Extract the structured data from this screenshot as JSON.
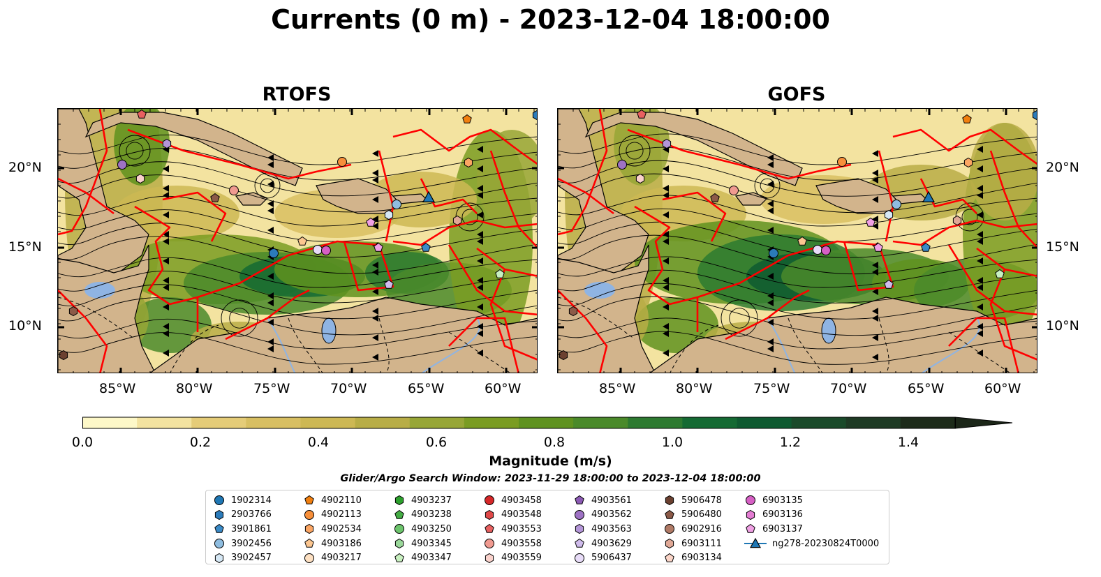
{
  "title": "Currents (0 m) - 2023-12-04 18:00:00",
  "panels": [
    {
      "title": "RTOFS"
    },
    {
      "title": "GOFS"
    }
  ],
  "axes": {
    "lon_ticks": [
      "85°W",
      "80°W",
      "75°W",
      "70°W",
      "65°W",
      "60°W"
    ],
    "lat_ticks": [
      "20°N",
      "15°N",
      "10°N"
    ]
  },
  "colorbar": {
    "ticks": [
      "0.0",
      "0.2",
      "0.4",
      "0.6",
      "0.8",
      "1.0",
      "1.2",
      "1.4"
    ],
    "label": "Magnitude (m/s)",
    "colors": [
      "#fdf8c8",
      "#f3e3a0",
      "#e5cc78",
      "#d8bf62",
      "#cdb854",
      "#b8ad46",
      "#97a636",
      "#7a9c22",
      "#5f921f",
      "#4a8a2a",
      "#2d7a30",
      "#146a33",
      "#0e5a30",
      "#1a4a2a",
      "#1e3a24",
      "#1d2b1a"
    ],
    "extend_color": "#1b2618"
  },
  "search_window": "Glider/Argo Search Window: 2023-11-29 18:00:00 to 2023-12-04 18:00:00",
  "legend": {
    "columns": [
      [
        {
          "label": "1902314",
          "color": "#1f77b4",
          "marker": "circle"
        },
        {
          "label": "2903766",
          "color": "#2b7bba",
          "marker": "hexagon"
        },
        {
          "label": "3901861",
          "color": "#3a8ac7",
          "marker": "pentagon"
        },
        {
          "label": "3902456",
          "color": "#8fbde0",
          "marker": "circle"
        },
        {
          "label": "3902457",
          "color": "#d6e8f5",
          "marker": "hexagon"
        }
      ],
      [
        {
          "label": "4902110",
          "color": "#f17f0f",
          "marker": "pentagon"
        },
        {
          "label": "4902113",
          "color": "#f78f3a",
          "marker": "circle"
        },
        {
          "label": "4902534",
          "color": "#fba563",
          "marker": "hexagon"
        },
        {
          "label": "4903186",
          "color": "#fcc690",
          "marker": "pentagon"
        },
        {
          "label": "4903217",
          "color": "#fde0c2",
          "marker": "circle"
        }
      ],
      [
        {
          "label": "4903237",
          "color": "#2ca02c",
          "marker": "hexagon"
        },
        {
          "label": "4903238",
          "color": "#44ac44",
          "marker": "pentagon"
        },
        {
          "label": "4903250",
          "color": "#6cc46c",
          "marker": "circle"
        },
        {
          "label": "4903345",
          "color": "#9ad89a",
          "marker": "hexagon"
        },
        {
          "label": "4903347",
          "color": "#c8f0c0",
          "marker": "pentagon"
        }
      ],
      [
        {
          "label": "4903458",
          "color": "#d62728",
          "marker": "circle"
        },
        {
          "label": "4903548",
          "color": "#e04848",
          "marker": "hexagon"
        },
        {
          "label": "4903553",
          "color": "#e86060",
          "marker": "pentagon"
        },
        {
          "label": "4903558",
          "color": "#f09a90",
          "marker": "circle"
        },
        {
          "label": "4903559",
          "color": "#fad2cc",
          "marker": "hexagon"
        }
      ],
      [
        {
          "label": "4903561",
          "color": "#8c5ab4",
          "marker": "pentagon"
        },
        {
          "label": "4903562",
          "color": "#9e72c4",
          "marker": "circle"
        },
        {
          "label": "4903563",
          "color": "#b496d8",
          "marker": "hexagon"
        },
        {
          "label": "4903629",
          "color": "#d0bcec",
          "marker": "pentagon"
        },
        {
          "label": "5906437",
          "color": "#e8dcf8",
          "marker": "circle"
        }
      ],
      [
        {
          "label": "5906478",
          "color": "#6b4030",
          "marker": "hexagon"
        },
        {
          "label": "5906480",
          "color": "#8c5a48",
          "marker": "pentagon"
        },
        {
          "label": "6902916",
          "color": "#b07a66",
          "marker": "circle"
        },
        {
          "label": "6903111",
          "color": "#e0a896",
          "marker": "hexagon"
        },
        {
          "label": "6903134",
          "color": "#fbd5c8",
          "marker": "pentagon"
        }
      ],
      [
        {
          "label": "6903135",
          "color": "#d65fc4",
          "marker": "circle"
        },
        {
          "label": "6903136",
          "color": "#e37cd2",
          "marker": "hexagon"
        },
        {
          "label": "6903137",
          "color": "#f0a0e4",
          "marker": "pentagon"
        },
        {
          "label": "ng278-20230824T0000",
          "color": "#1f77b4",
          "marker": "triangle-line"
        }
      ]
    ]
  },
  "map_layers": {
    "land_color": "#d2b48c",
    "lake_color": "#8fb4e3",
    "eez_color": "#ff0000",
    "streamline_color": "#000000"
  }
}
